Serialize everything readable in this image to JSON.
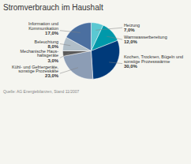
{
  "chart_data": {
    "type": "pie",
    "title": "Stromverbrauch im Haushalt",
    "categories": [
      "Heizung",
      "Warmwasserbereitung",
      "Kochen, Trocknen, Bügeln und\nsonstige Prozesswärme",
      "Kühl- und Gefriergeräte,\nsonstige Prozeskälte",
      "Mechanische Haus-\nhaltsgeräte",
      "Beleuchtung",
      "Information und\nKommunikation"
    ],
    "values": [
      7.0,
      12.0,
      30.0,
      23.0,
      3.0,
      8.0,
      17.0
    ],
    "value_labels": [
      "7,0%",
      "12,0%",
      "30,0%",
      "23,0%",
      "3,0%",
      "8,0%",
      "17,0%"
    ],
    "colors": [
      "#5bc8d2",
      "#0099aa",
      "#003a7a",
      "#8c9db5",
      "#5a5a5a",
      "#b0bec8",
      "#4b6fa0"
    ],
    "data_labels": true,
    "source": "Quelle: AG Energiebilanzen, Stand 11/2007"
  }
}
